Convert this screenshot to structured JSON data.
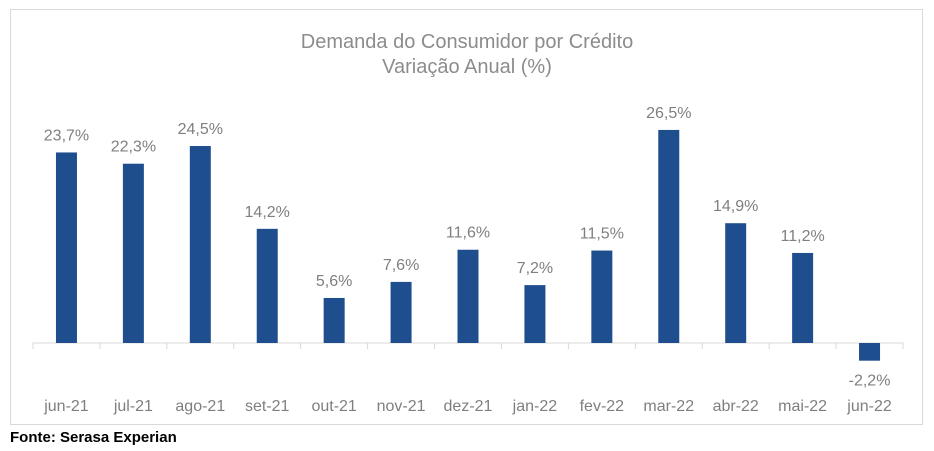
{
  "chart_data": {
    "type": "bar",
    "title": "Demanda do Consumidor por Crédito",
    "subtitle": "Variação Anual (%)",
    "categories": [
      "jun-21",
      "jul-21",
      "ago-21",
      "set-21",
      "out-21",
      "nov-21",
      "dez-21",
      "jan-22",
      "fev-22",
      "mar-22",
      "abr-22",
      "mai-22",
      "jun-22"
    ],
    "values": [
      23.7,
      22.3,
      24.5,
      14.2,
      5.6,
      7.6,
      11.6,
      7.2,
      11.5,
      26.5,
      14.9,
      11.2,
      -2.2
    ],
    "data_labels": [
      "23,7%",
      "22,3%",
      "24,5%",
      "14,2%",
      "5,6%",
      "7,6%",
      "11,6%",
      "7,2%",
      "11,5%",
      "26,5%",
      "14,9%",
      "11,2%",
      "-2,2%"
    ],
    "xlabel": "",
    "ylabel": "",
    "grid": false,
    "bar_color": "#1f4e8f",
    "text_color": "#7f7f7f"
  },
  "source": "Fonte: Serasa Experian"
}
